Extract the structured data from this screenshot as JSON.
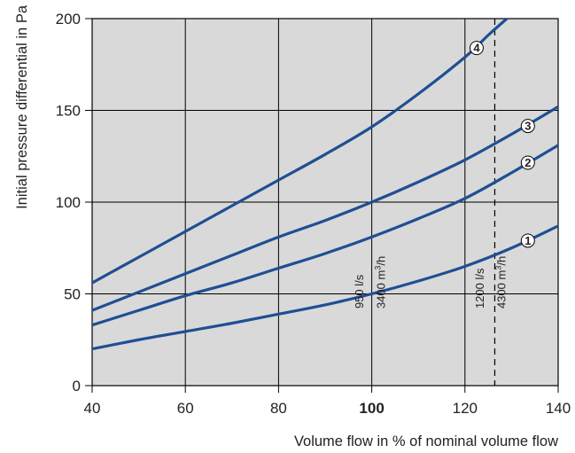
{
  "chart_data": {
    "type": "line",
    "xlabel": "Volume flow in % of nominal volume flow",
    "ylabel": "Initial pressure differential in Pa",
    "xlim": [
      40,
      140
    ],
    "ylim": [
      0,
      200
    ],
    "x_ticks": [
      "40",
      "60",
      "80",
      "100",
      "120",
      "140"
    ],
    "y_ticks": [
      "0",
      "50",
      "100",
      "150",
      "200"
    ],
    "grid": true,
    "plot_background": "#d9d9d9",
    "line_color": "#1f4f93",
    "series": [
      {
        "name": "1",
        "x": [
          40,
          50,
          60,
          70,
          80,
          90,
          100,
          110,
          120,
          130,
          140
        ],
        "y": [
          20,
          25,
          29.5,
          34,
          39,
          44,
          50,
          57,
          65,
          75,
          87
        ]
      },
      {
        "name": "2",
        "x": [
          40,
          50,
          60,
          70,
          80,
          90,
          100,
          110,
          120,
          130,
          140
        ],
        "y": [
          33,
          41,
          49,
          56,
          64,
          72,
          81,
          91,
          102,
          116,
          131
        ]
      },
      {
        "name": "3",
        "x": [
          40,
          50,
          60,
          70,
          80,
          90,
          100,
          110,
          120,
          130,
          140
        ],
        "y": [
          41,
          51,
          61,
          71,
          81,
          90,
          100,
          111,
          123,
          137,
          152
        ]
      },
      {
        "name": "4",
        "x": [
          40,
          50,
          60,
          70,
          80,
          90,
          100,
          110,
          120,
          125,
          129
        ],
        "y": [
          56,
          70,
          84,
          98,
          112,
          126,
          141,
          159,
          179,
          191,
          200
        ]
      }
    ],
    "markers": [
      {
        "label": "1",
        "x": 133.5,
        "y": 79
      },
      {
        "label": "2",
        "x": 133.5,
        "y": 121.5
      },
      {
        "label": "3",
        "x": 133.5,
        "y": 141.5
      },
      {
        "label": "4",
        "x": 122.5,
        "y": 184
      }
    ],
    "reference_line": {
      "x": 126.4,
      "style": "dashed"
    },
    "annotations": [
      {
        "text": "950 l/s",
        "x": 98.2,
        "y": 42
      },
      {
        "text": "3400 m³/h",
        "x": 102.8,
        "y": 42
      },
      {
        "text": "1200 l/s",
        "x": 124.0,
        "y": 42
      },
      {
        "text": "4300 m³/h",
        "x": 128.7,
        "y": 42
      }
    ]
  }
}
